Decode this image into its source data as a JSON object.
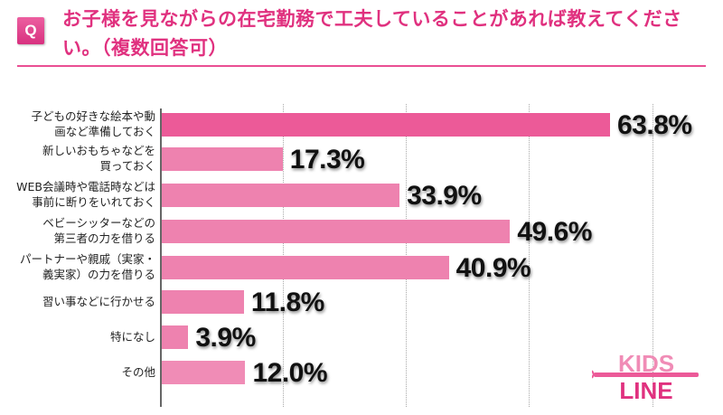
{
  "header": {
    "badge": "Q",
    "title": "お子様を見ながらの在宅勤務で工夫していることがあれば教えてください。（複数回答可）"
  },
  "logo": {
    "line1": "KIDS",
    "line2": "LINE"
  },
  "colors": {
    "accent": "#e0317f",
    "bar_top": "#ec5a98",
    "bar": "#ee82af",
    "bar_last": "#f08cb6"
  },
  "chart_data": {
    "type": "bar",
    "orientation": "horizontal",
    "title": "お子様を見ながらの在宅勤務で工夫していることがあれば教えてください。（複数回答可）",
    "categories": [
      "子どもの好きな絵本や動画など準備しておく",
      "新しいおもちゃなどを買っておく",
      "WEB会議時や電話時などは事前に断りをいれておく",
      "ベビーシッターなどの第三者の力を借りる",
      "パートナーや親戚（実家・義実家）の力を借りる",
      "習い事などに行かせる",
      "特になし",
      "その他"
    ],
    "values": [
      63.8,
      17.3,
      33.9,
      49.6,
      40.9,
      11.8,
      3.9,
      12.0
    ],
    "unit": "%",
    "grid": true,
    "xlabel": "",
    "ylabel": ""
  },
  "rows": [
    {
      "label1": "子どもの好きな絵本や動",
      "label2": "画など準備しておく",
      "value": "63.8%"
    },
    {
      "label1": "新しいおもちゃなどを",
      "label2": "買っておく",
      "value": "17.3%"
    },
    {
      "label1": "WEB会議時や電話時などは",
      "label2": "事前に断りをいれておく",
      "value": "33.9%"
    },
    {
      "label1": "ベビーシッターなどの",
      "label2": "第三者の力を借りる",
      "value": "49.6%"
    },
    {
      "label1": "パートナーや親戚（実家・",
      "label2": "義実家）の力を借りる",
      "value": "40.9%"
    },
    {
      "label1": "習い事などに行かせる",
      "label2": "",
      "value": "11.8%"
    },
    {
      "label1": "特になし",
      "label2": "",
      "value": "3.9%"
    },
    {
      "label1": "その他",
      "label2": "",
      "value": "12.0%"
    }
  ]
}
